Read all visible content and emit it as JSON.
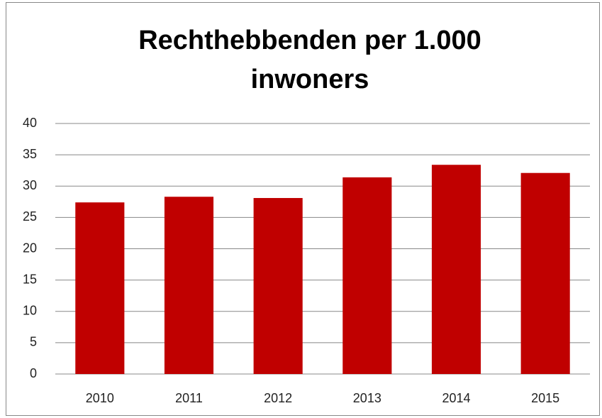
{
  "chart_data": {
    "type": "bar",
    "title": "Rechthebbenden per 1.000 inwoners",
    "categories": [
      "2010",
      "2011",
      "2012",
      "2013",
      "2014",
      "2015"
    ],
    "values": [
      27.4,
      28.3,
      28.1,
      31.4,
      33.4,
      32.1
    ],
    "color": "#c00000",
    "ylim": [
      0,
      40
    ],
    "yticks": [
      0,
      5,
      10,
      15,
      20,
      25,
      30,
      35,
      40
    ],
    "grid": true
  }
}
